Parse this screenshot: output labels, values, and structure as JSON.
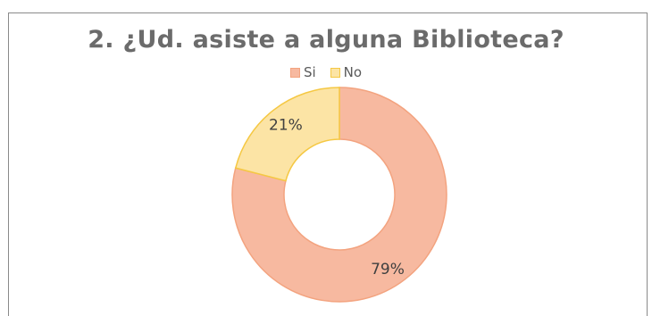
{
  "chart_data": {
    "type": "pie",
    "variant": "donut",
    "title": "2. ¿Ud. asiste a alguna Biblioteca?",
    "categories": [
      "Si",
      "No"
    ],
    "values": [
      79,
      21
    ],
    "data_labels": [
      "79%",
      "21%"
    ],
    "colors": [
      "#F7B9A0",
      "#FCE4A5"
    ],
    "stroke_colors": [
      "#F3A37F",
      "#F5C843"
    ],
    "legend_position": "top"
  }
}
